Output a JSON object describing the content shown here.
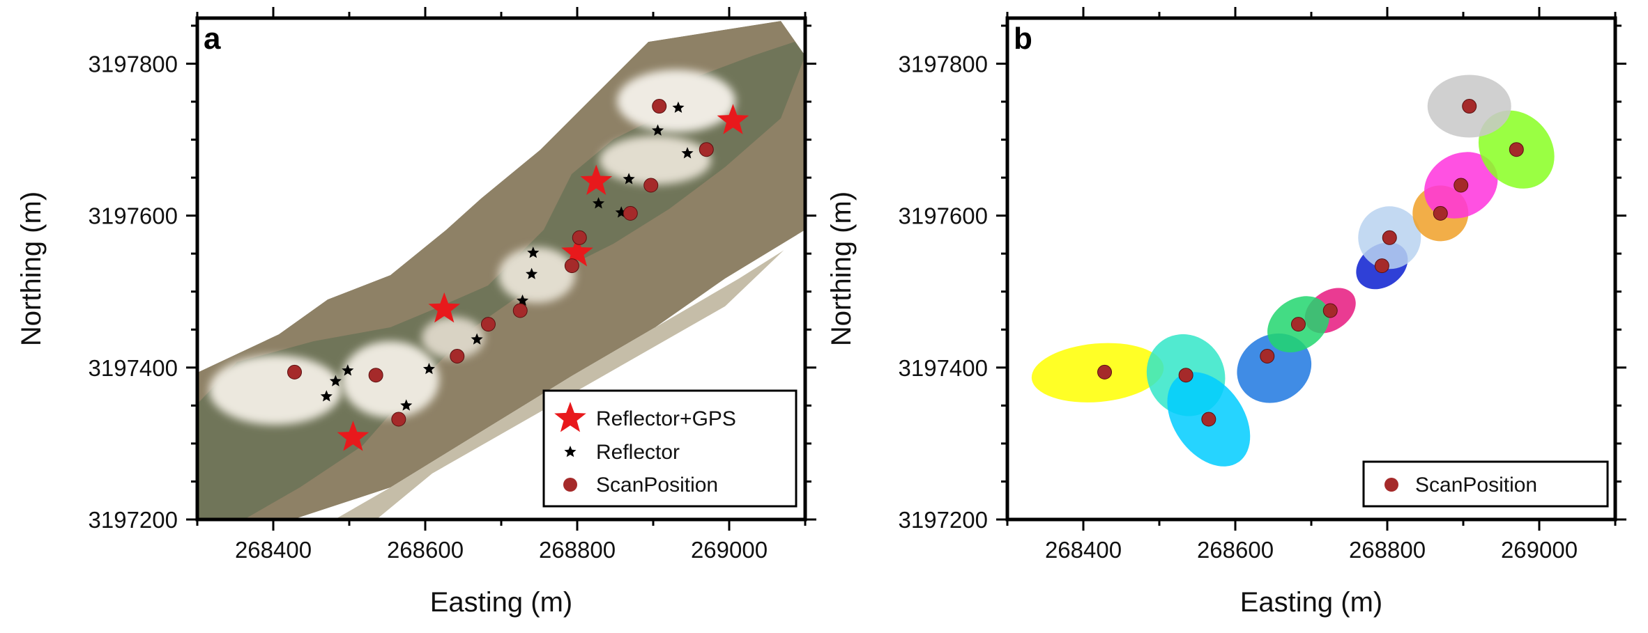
{
  "colors": {
    "scan_position": "#a52a2a",
    "reflector_gps": "#e8191c",
    "reflector": "#000000",
    "water": "#8e8166",
    "vegetation": "#6f7458",
    "sand": "#ece8de"
  },
  "chart_data": [
    {
      "type": "scatter",
      "panel": "a",
      "title": "",
      "xlabel": "Easting (m)",
      "ylabel": "Northing (m)",
      "xlim": [
        268300,
        269100
      ],
      "ylim": [
        3197200,
        3197860
      ],
      "x_ticks": [
        "268400",
        "268600",
        "268800",
        "269000"
      ],
      "y_ticks": [
        "3197200",
        "3197400",
        "3197600",
        "3197800"
      ],
      "legend": [
        "Reflector+GPS",
        "Reflector",
        "ScanPosition"
      ],
      "legend_position": "bottom-right",
      "background": "aerial orthophoto",
      "series": [
        {
          "name": "Reflector+GPS",
          "marker": "large-star",
          "points": [
            [
              268505,
              3197308
            ],
            [
              268625,
              3197477
            ],
            [
              268800,
              3197551
            ],
            [
              268825,
              3197645
            ],
            [
              269005,
              3197725
            ]
          ]
        },
        {
          "name": "Reflector",
          "marker": "small-star",
          "points": [
            [
              268470,
              3197362
            ],
            [
              268482,
              3197382
            ],
            [
              268498,
              3197396
            ],
            [
              268575,
              3197350
            ],
            [
              268605,
              3197398
            ],
            [
              268668,
              3197437
            ],
            [
              268728,
              3197488
            ],
            [
              268740,
              3197523
            ],
            [
              268742,
              3197551
            ],
            [
              268828,
              3197616
            ],
            [
              268858,
              3197604
            ],
            [
              268868,
              3197648
            ],
            [
              268906,
              3197712
            ],
            [
              268933,
              3197742
            ],
            [
              268945,
              3197682
            ]
          ]
        },
        {
          "name": "ScanPosition",
          "marker": "circle",
          "points": [
            [
              268428,
              3197394
            ],
            [
              268535,
              3197390
            ],
            [
              268565,
              3197332
            ],
            [
              268642,
              3197415
            ],
            [
              268683,
              3197457
            ],
            [
              268725,
              3197475
            ],
            [
              268793,
              3197534
            ],
            [
              268803,
              3197571
            ],
            [
              268870,
              3197603
            ],
            [
              268897,
              3197640
            ],
            [
              268908,
              3197744
            ],
            [
              268970,
              3197687
            ]
          ]
        }
      ]
    },
    {
      "type": "scatter",
      "panel": "b",
      "title": "",
      "xlabel": "Easting (m)",
      "ylabel": "Northing (m)",
      "xlim": [
        268300,
        269100
      ],
      "ylim": [
        3197200,
        3197860
      ],
      "x_ticks": [
        "268400",
        "268600",
        "268800",
        "269000"
      ],
      "y_ticks": [
        "3197200",
        "3197400",
        "3197600",
        "3197800"
      ],
      "legend": [
        "ScanPosition"
      ],
      "legend_position": "bottom-right",
      "background": "colored point clouds, one color per scan position",
      "series": [
        {
          "name": "ScanPosition",
          "marker": "circle",
          "points": [
            [
              268428,
              3197394
            ],
            [
              268535,
              3197390
            ],
            [
              268565,
              3197332
            ],
            [
              268642,
              3197415
            ],
            [
              268683,
              3197457
            ],
            [
              268725,
              3197475
            ],
            [
              268793,
              3197534
            ],
            [
              268803,
              3197571
            ],
            [
              268870,
              3197603
            ],
            [
              268897,
              3197640
            ],
            [
              268908,
              3197744
            ],
            [
              268970,
              3197687
            ]
          ]
        }
      ],
      "cloud_colors": [
        "#ffff00",
        "#33e6c8",
        "#00ccff",
        "#1e78e0",
        "#e6197f",
        "#22d66e",
        "#0a1fd0",
        "#b8d2f0",
        "#f0a028",
        "#ff33dd",
        "#88ff22",
        "#c8c8c8"
      ]
    }
  ]
}
